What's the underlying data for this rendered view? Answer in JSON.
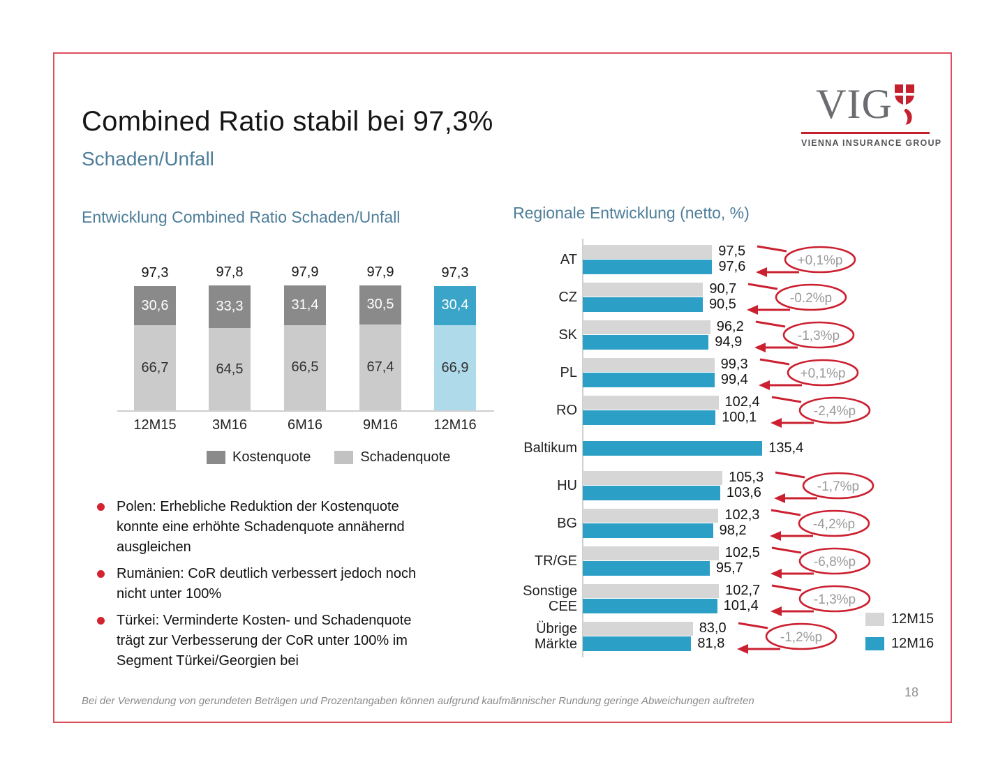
{
  "slide": {
    "title": "Combined Ratio stabil bei 97,3%",
    "subtitle": "Schaden/Unfall",
    "page_number": "18",
    "footnote": "Bei der Verwendung von gerundeten Beträgen und Prozentangaben können aufgrund kaufmännischer Rundung geringe Abweichungen auftreten"
  },
  "logo": {
    "acronym": "VIG",
    "name": "VIENNA INSURANCE GROUP",
    "mark": "vig-shield-icon"
  },
  "colors": {
    "teal": "#2B9FC6",
    "teal_light": "#AFDAE9",
    "kosten_gray": "#8A8A8A",
    "schaden_gray": "#CBCBCB",
    "bar15_gray": "#D6D6D6",
    "accent_red": "#CB2030",
    "heading_blue": "#4E7E9A",
    "annotation_text_gray": "#9A9A9A",
    "frame_red": "#DB4F5B"
  },
  "bullets": [
    "Polen: Erhebliche Reduktion der Kostenquote konnte eine erhöhte Schadenquote annähernd ausgleichen",
    "Rumänien: CoR deutlich verbessert jedoch noch nicht unter 100%",
    "Türkei: Verminderte Kosten- und Schadenquote trägt zur Verbesserung der CoR unter 100% im Segment Türkei/Georgien bei"
  ],
  "chart_data": [
    {
      "type": "bar",
      "orientation": "vertical",
      "stacked": true,
      "title": "Entwicklung Combined Ratio Schaden/Unfall",
      "categories": [
        "12M15",
        "3M16",
        "6M16",
        "9M16",
        "12M16"
      ],
      "series": [
        {
          "name": "Kostenquote",
          "values": [
            30.6,
            33.3,
            31.4,
            30.5,
            30.4
          ]
        },
        {
          "name": "Schadenquote",
          "values": [
            66.7,
            64.5,
            66.5,
            67.4,
            66.9
          ]
        }
      ],
      "totals": [
        97.3,
        97.8,
        97.9,
        97.9,
        97.3
      ],
      "legend": [
        "Kostenquote",
        "Schadenquote"
      ],
      "highlight_last_category": true,
      "value_format": "decimal-comma",
      "grid": false
    },
    {
      "type": "bar",
      "orientation": "horizontal",
      "grouped": true,
      "title": "Regionale Entwicklung (netto, %)",
      "legend": [
        "12M15",
        "12M16"
      ],
      "xlim": [
        0,
        140
      ],
      "grid": false,
      "rows": [
        {
          "label": "AT",
          "v_12M15": 97.5,
          "v_12M16": 97.6,
          "delta": "+0,1%p"
        },
        {
          "label": "CZ",
          "v_12M15": 90.7,
          "v_12M16": 90.5,
          "delta": "-0.2%p"
        },
        {
          "label": "SK",
          "v_12M15": 96.2,
          "v_12M16": 94.9,
          "delta": "-1,3%p"
        },
        {
          "label": "PL",
          "v_12M15": 99.3,
          "v_12M16": 99.4,
          "delta": "+0,1%p"
        },
        {
          "label": "RO",
          "v_12M15": 102.4,
          "v_12M16": 100.1,
          "delta": "-2,4%p"
        },
        {
          "label": "Baltikum",
          "v_12M15": null,
          "v_12M16": 135.4,
          "delta": null
        },
        {
          "label": "HU",
          "v_12M15": 105.3,
          "v_12M16": 103.6,
          "delta": "-1,7%p"
        },
        {
          "label": "BG",
          "v_12M15": 102.3,
          "v_12M16": 98.2,
          "delta": "-4,2%p"
        },
        {
          "label": "TR/GE",
          "v_12M15": 102.5,
          "v_12M16": 95.7,
          "delta": "-6,8%p"
        },
        {
          "label": "Sonstige CEE",
          "label_lines": [
            "Sonstige",
            "CEE"
          ],
          "v_12M15": 102.7,
          "v_12M16": 101.4,
          "delta": "-1,3%p"
        },
        {
          "label": "Übrige Märkte",
          "label_lines": [
            "Übrige",
            "Märkte"
          ],
          "v_12M15": 83.0,
          "v_12M16": 81.8,
          "delta": "-1,2%p"
        }
      ]
    }
  ]
}
